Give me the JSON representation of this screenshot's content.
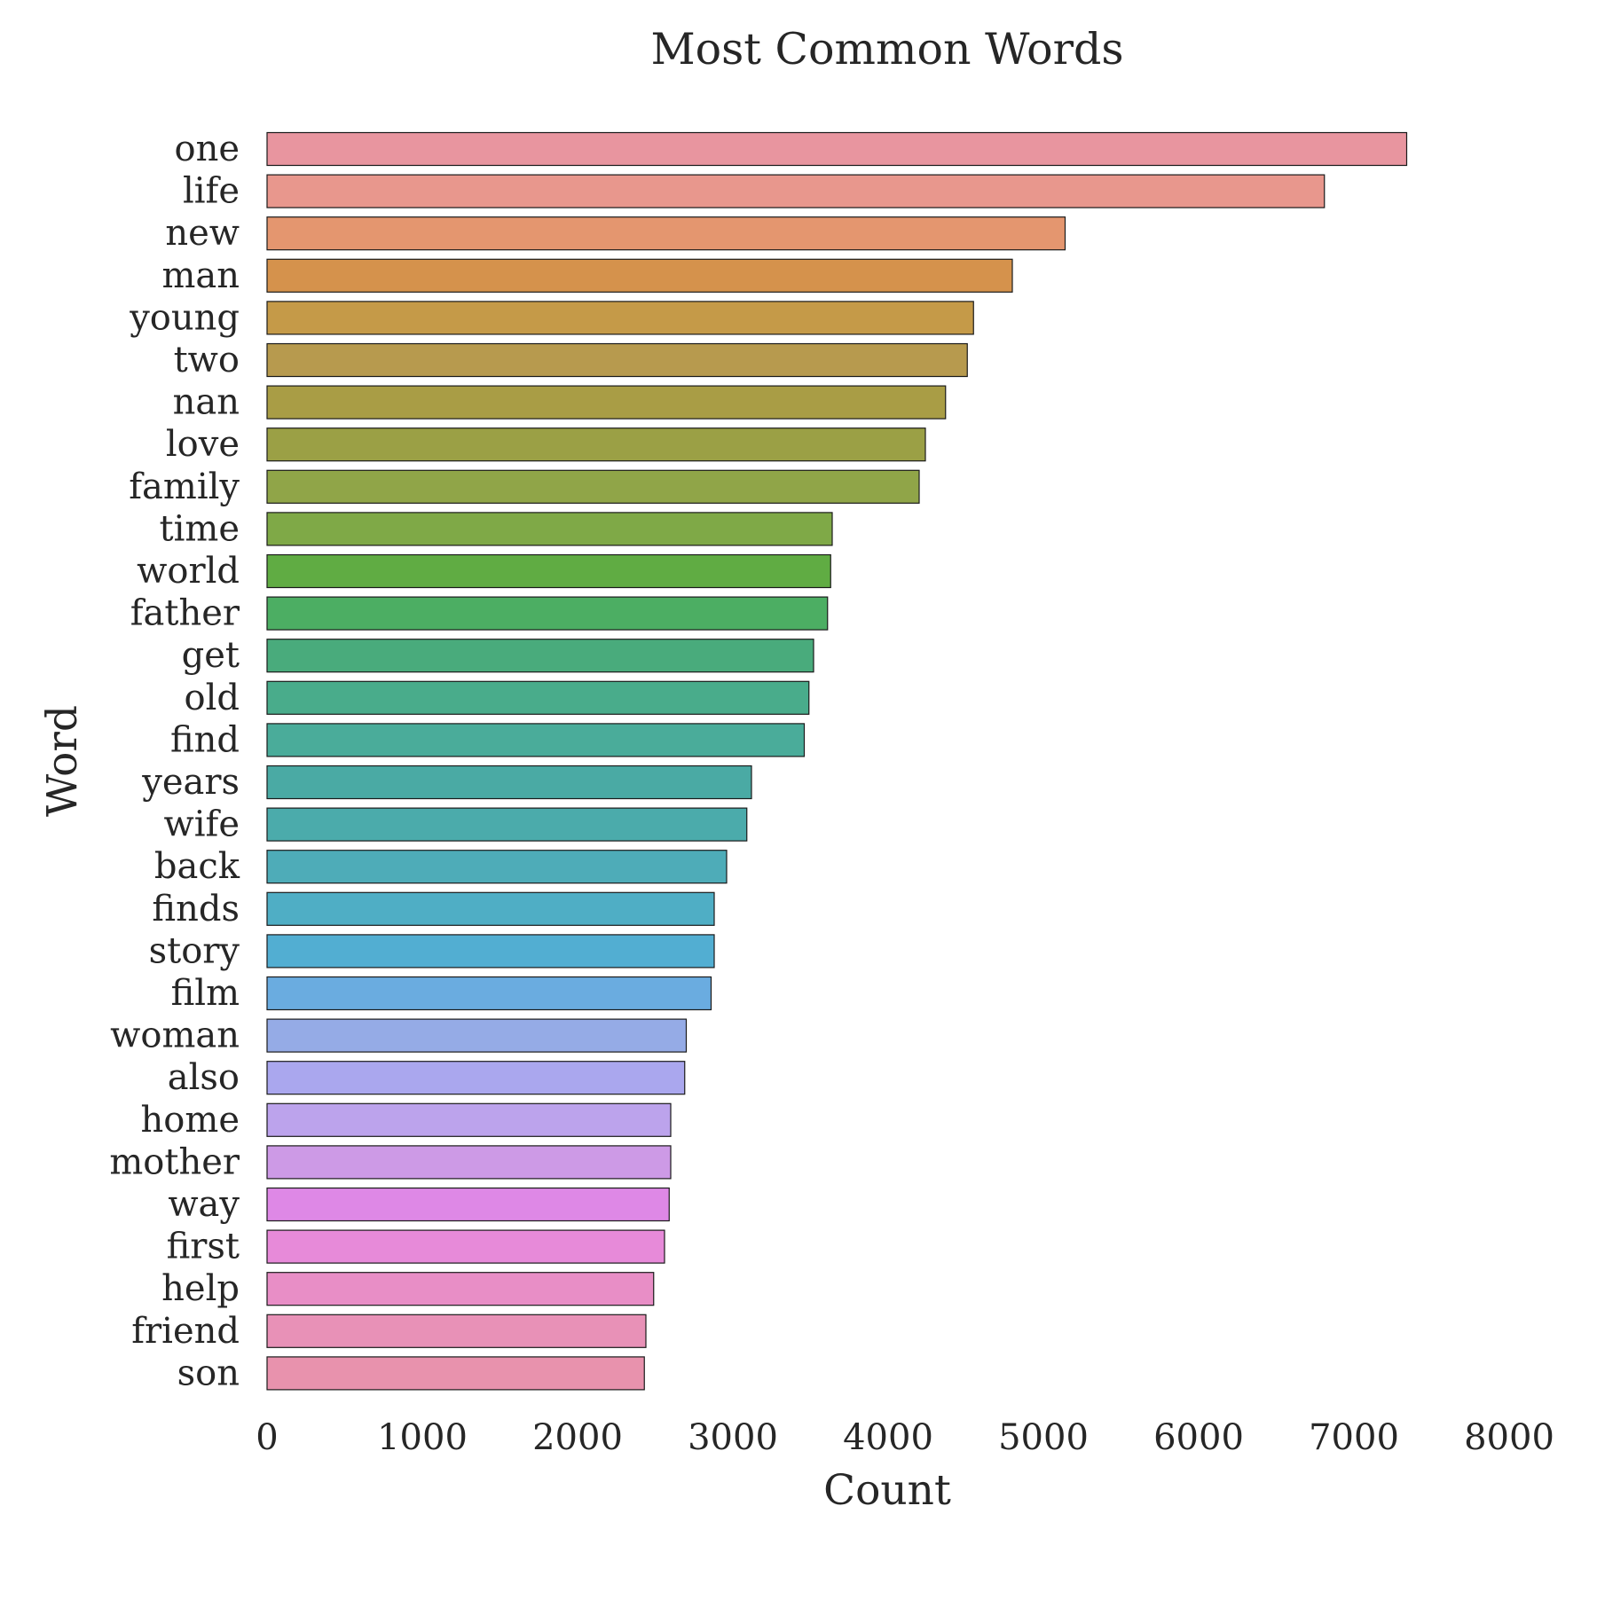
{
  "chart_data": {
    "type": "bar",
    "orientation": "horizontal",
    "title": "Most Common Words",
    "xlabel": "Count",
    "ylabel": "Word",
    "xlim": [
      0,
      8000
    ],
    "xticks": [
      "0",
      "1000",
      "2000",
      "3000",
      "4000",
      "5000",
      "6000",
      "7000",
      "8000"
    ],
    "grid": false,
    "categories": [
      "one",
      "life",
      "new",
      "man",
      "young",
      "two",
      "nan",
      "love",
      "family",
      "time",
      "world",
      "father",
      "get",
      "old",
      "find",
      "years",
      "wife",
      "back",
      "finds",
      "story",
      "film",
      "woman",
      "also",
      "home",
      "mother",
      "way",
      "first",
      "help",
      "friend",
      "son"
    ],
    "values": [
      7340,
      6810,
      5140,
      4800,
      4550,
      4510,
      4370,
      4240,
      4200,
      3640,
      3630,
      3610,
      3520,
      3490,
      3460,
      3120,
      3090,
      2960,
      2880,
      2880,
      2860,
      2700,
      2690,
      2600,
      2600,
      2590,
      2560,
      2490,
      2440,
      2430
    ],
    "colors": [
      "#e8959f",
      "#e8978d",
      "#e4966f",
      "#d5924c",
      "#c59a48",
      "#b79a4e",
      "#a99d45",
      "#9ba045",
      "#90a548",
      "#7fa947",
      "#60ac43",
      "#4cae63",
      "#49ab7c",
      "#49ac8b",
      "#4aac9a",
      "#4aaaa4",
      "#4babab",
      "#4eacb8",
      "#4faec5",
      "#52aed2",
      "#6aace0",
      "#95abe6",
      "#aaa7ee",
      "#bca3ec",
      "#cd9ae6",
      "#de88e6",
      "#e78ad9",
      "#e88ec6",
      "#e891b7",
      "#e892ad"
    ]
  }
}
